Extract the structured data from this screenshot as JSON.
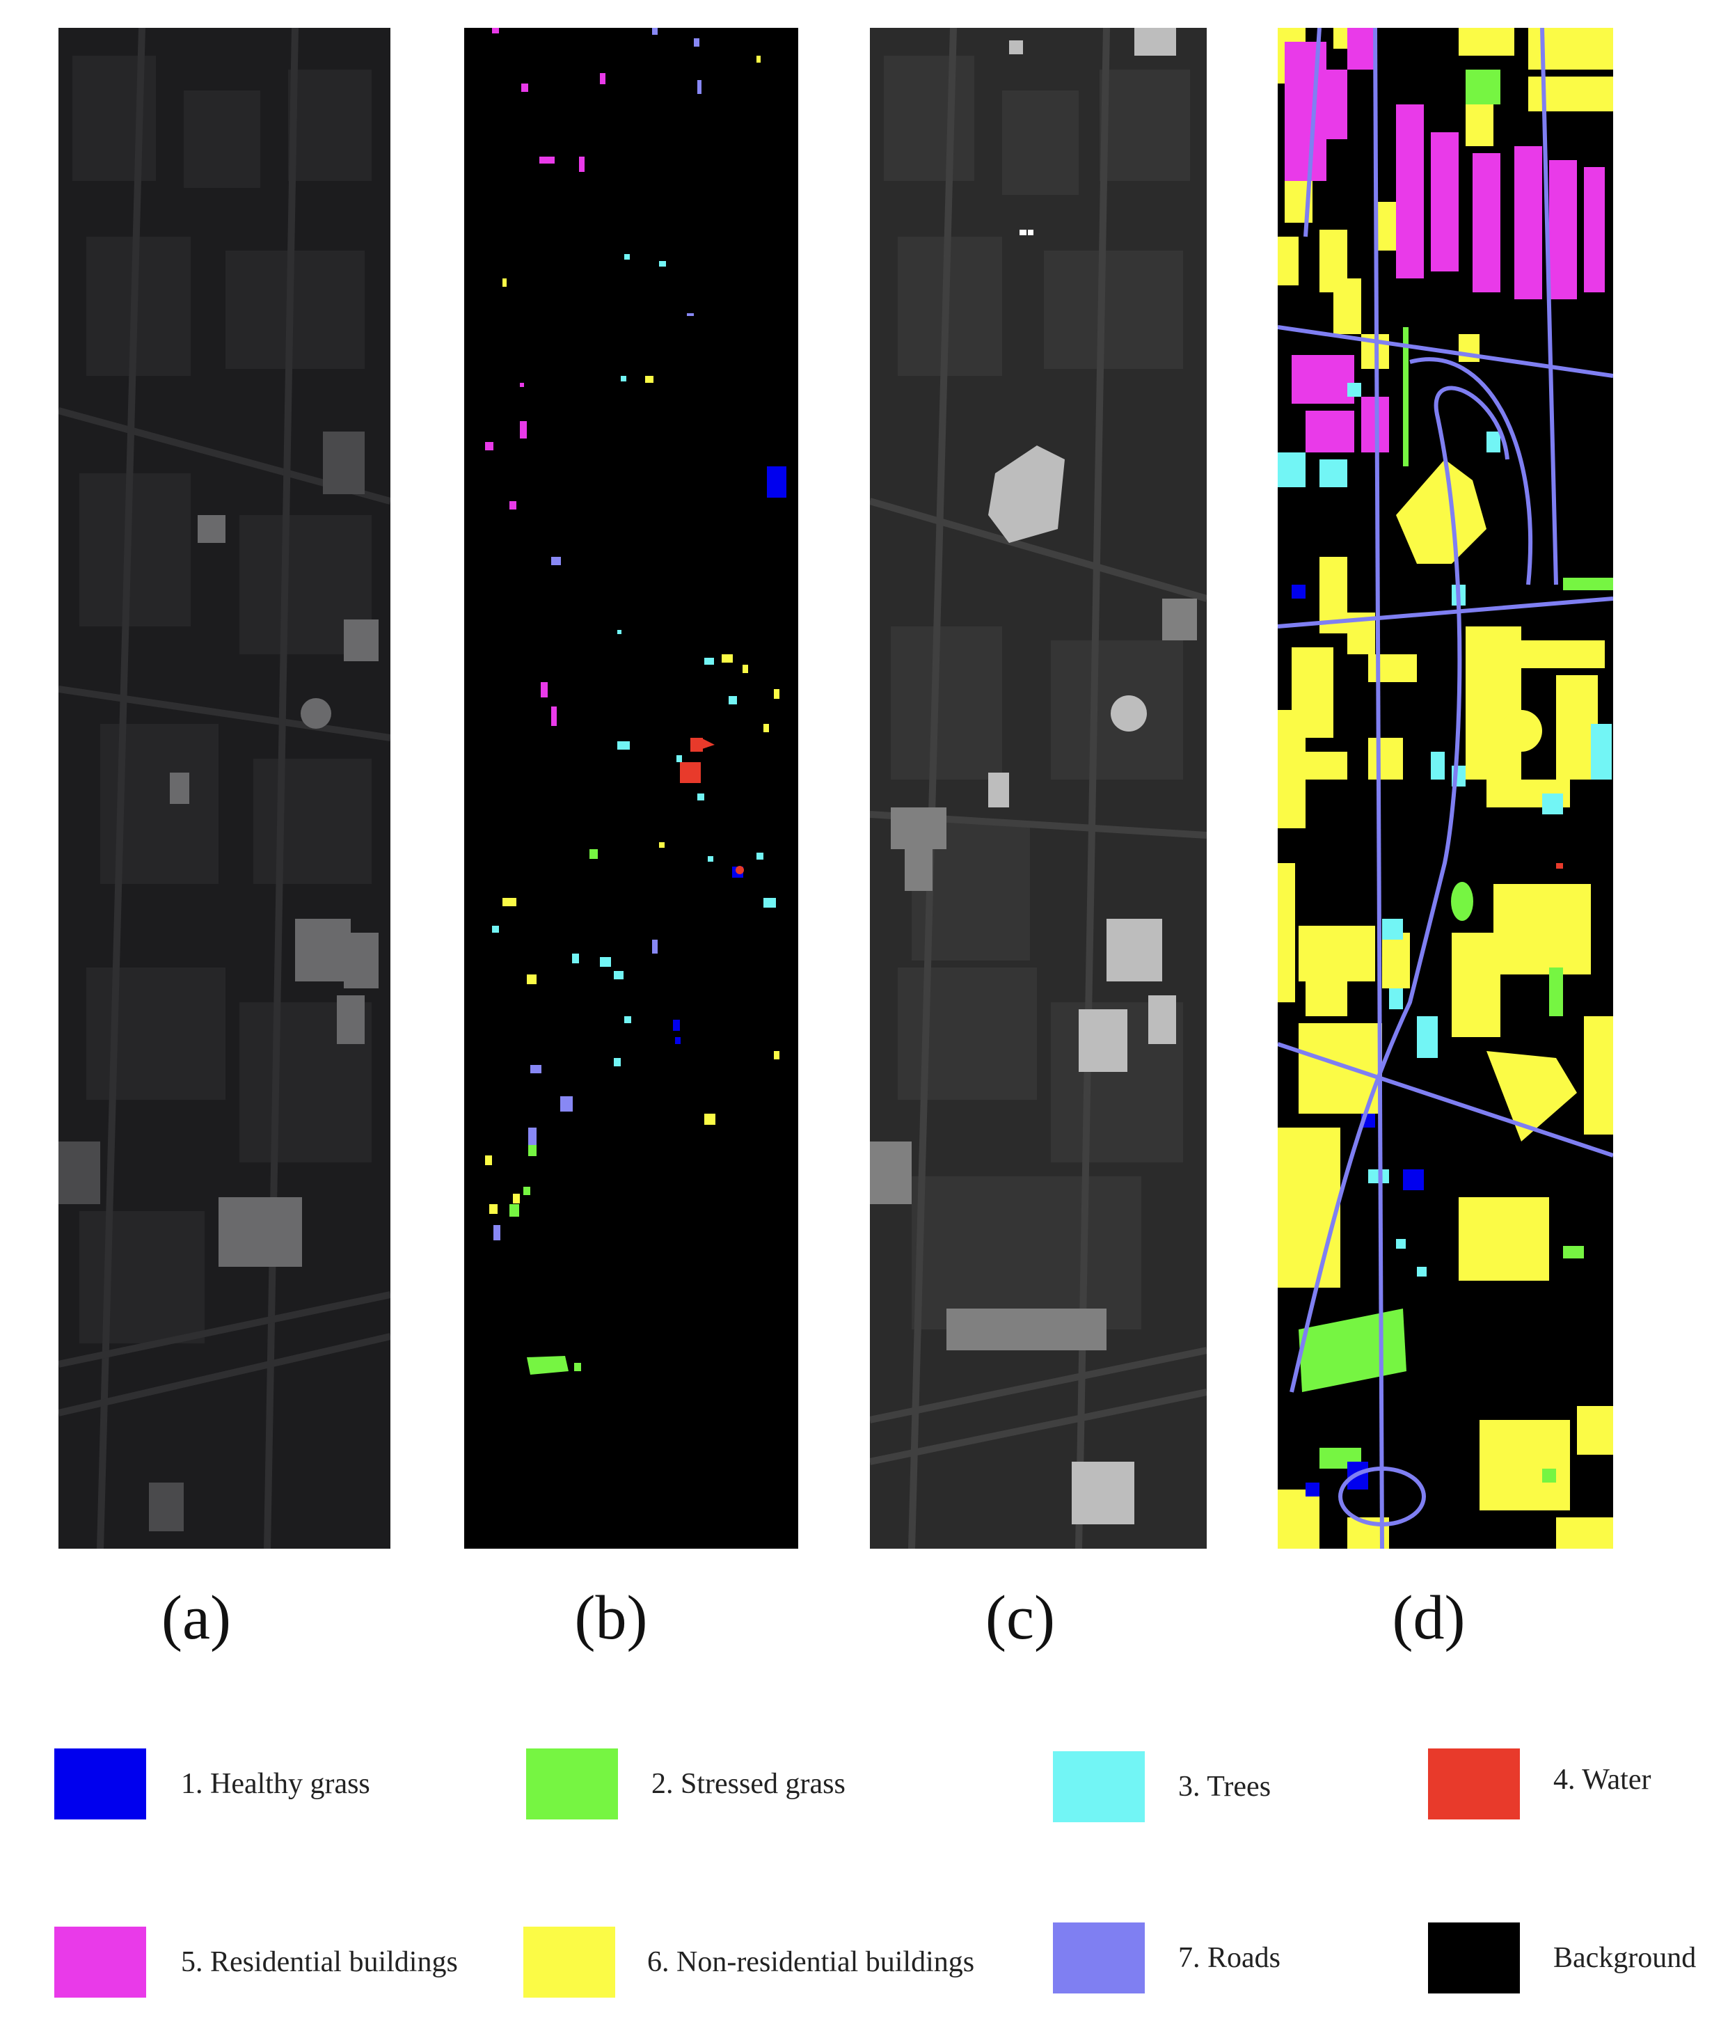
{
  "panels": [
    {
      "id": "a",
      "caption": "(a)",
      "kind": "false-color-image"
    },
    {
      "id": "b",
      "caption": "(b)",
      "kind": "training-samples-map"
    },
    {
      "id": "c",
      "caption": "(c)",
      "kind": "grayscale-image"
    },
    {
      "id": "d",
      "caption": "(d)",
      "kind": "ground-truth-map"
    }
  ],
  "legend": [
    {
      "label": "1. Healthy grass",
      "color": "#0000ee"
    },
    {
      "label": "2. Stressed grass",
      "color": "#76f542"
    },
    {
      "label": "3. Trees",
      "color": "#72f5f5"
    },
    {
      "label": "4. Water",
      "color": "#e83a2b"
    },
    {
      "label": "5. Residential buildings",
      "color": "#e93ae9"
    },
    {
      "label": "6. Non-residential buildings",
      "color": "#fbfb46"
    },
    {
      "label": "7. Roads",
      "color": "#7f7ff2"
    },
    {
      "label": "Background",
      "color": "#000000"
    }
  ]
}
